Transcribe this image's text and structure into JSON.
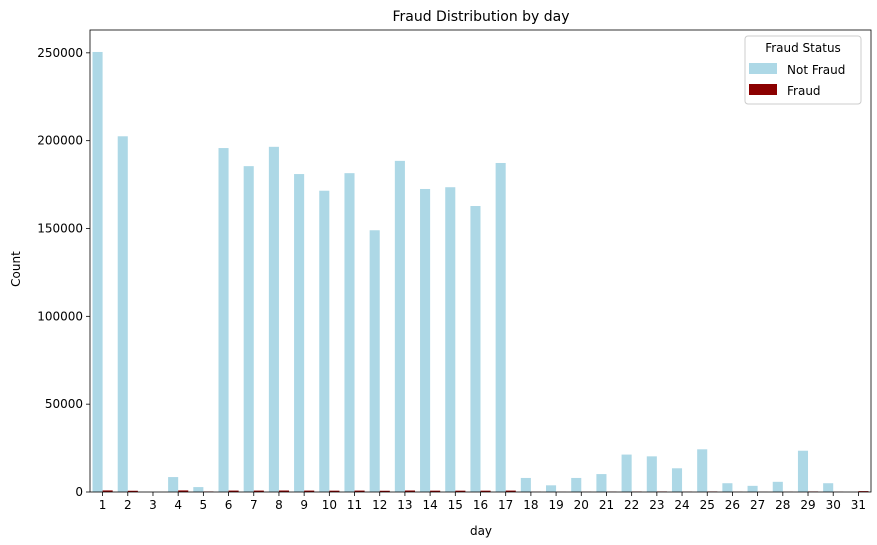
{
  "chart_data": {
    "type": "bar",
    "title": "Fraud Distribution by day",
    "xlabel": "day",
    "ylabel": "Count",
    "ylim": [
      0,
      263000
    ],
    "yticks": [
      0,
      50000,
      100000,
      150000,
      200000,
      250000
    ],
    "categories": [
      "1",
      "2",
      "3",
      "4",
      "5",
      "6",
      "7",
      "8",
      "9",
      "10",
      "11",
      "12",
      "13",
      "14",
      "15",
      "16",
      "17",
      "18",
      "19",
      "20",
      "21",
      "22",
      "23",
      "24",
      "25",
      "26",
      "27",
      "28",
      "29",
      "30",
      "31"
    ],
    "legend": {
      "title": "Fraud Status",
      "placement": "top-right"
    },
    "series": [
      {
        "name": "Not Fraud",
        "color": "#add8e6",
        "values": [
          250500,
          202500,
          0,
          8500,
          2800,
          195800,
          185500,
          196500,
          181000,
          171500,
          181500,
          149000,
          188500,
          172500,
          173500,
          162800,
          187300,
          8000,
          3800,
          8000,
          10200,
          21300,
          20300,
          13500,
          24300,
          5000,
          3500,
          5800,
          23500,
          5000,
          0
        ]
      },
      {
        "name": "Fraud",
        "color": "#8b0000",
        "values": [
          900,
          700,
          0,
          900,
          300,
          800,
          800,
          850,
          800,
          750,
          800,
          700,
          850,
          750,
          750,
          750,
          800,
          100,
          50,
          100,
          150,
          250,
          300,
          150,
          300,
          100,
          50,
          100,
          300,
          100,
          500
        ]
      }
    ]
  }
}
